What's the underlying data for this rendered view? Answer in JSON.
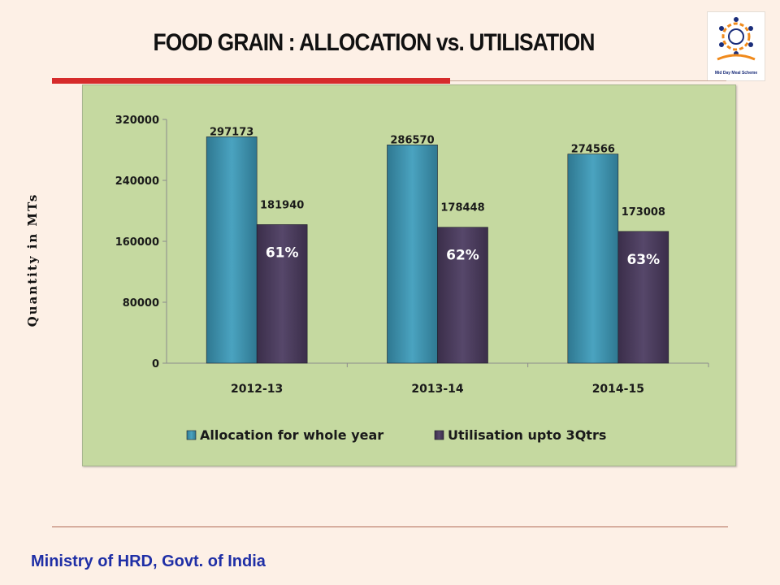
{
  "slide": {
    "title": "FOOD GRAIN : ALLOCATION vs. UTILISATION",
    "footer": "Ministry of HRD, Govt. of India",
    "logo_caption": "Mid Day Meal Scheme"
  },
  "colors": {
    "allocation": "#3a8ba8",
    "utilisation": "#4a3a5a",
    "panel": "#c5d9a0",
    "accent_rule": "#d62b2b",
    "footer_text": "#1f2fa6"
  },
  "chart_data": {
    "type": "bar",
    "title": "",
    "xlabel": "",
    "ylabel": "Quantity in MTs",
    "categories": [
      "2012-13",
      "2013-14",
      "2014-15"
    ],
    "ylim": [
      0,
      320000
    ],
    "yticks": [
      "0",
      "80000",
      "160000",
      "240000",
      "320000"
    ],
    "series": [
      {
        "name": "Allocation for whole year",
        "values": [
          297173,
          286570,
          274566
        ]
      },
      {
        "name": "Utilisation upto 3Qtrs",
        "values": [
          181940,
          178448,
          173008
        ]
      }
    ],
    "annotations": [
      "61%",
      "62%",
      "63%"
    ],
    "legend_position": "bottom",
    "grid": false
  }
}
